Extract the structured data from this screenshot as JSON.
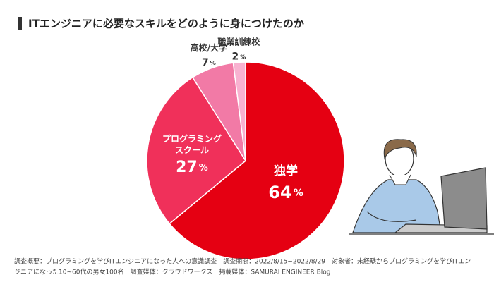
{
  "chart_data": {
    "type": "pie",
    "title": "ITエンジニアに必要なスキルをどのように身につけたのか",
    "categories": [
      "独学",
      "プログラミング\nスクール",
      "高校/大学",
      "職業訓練校"
    ],
    "values": [
      64,
      27,
      7,
      2
    ],
    "unit": "%",
    "colors": [
      "#e50012",
      "#f0305a",
      "#f27aa6",
      "#f8b1d0"
    ],
    "footnote": [
      "調査概要：プログラミングを学びITエンジニアになった人への意識調査　調査期間：2022/8/15~2022/8/29　対象者：未経験からプログラミングを学びITエン",
      "ジニアになった10~60代の男女100名　調査媒体：クラウドワークス　掲載媒体：SAMURAI ENGINEER Blog"
    ]
  }
}
